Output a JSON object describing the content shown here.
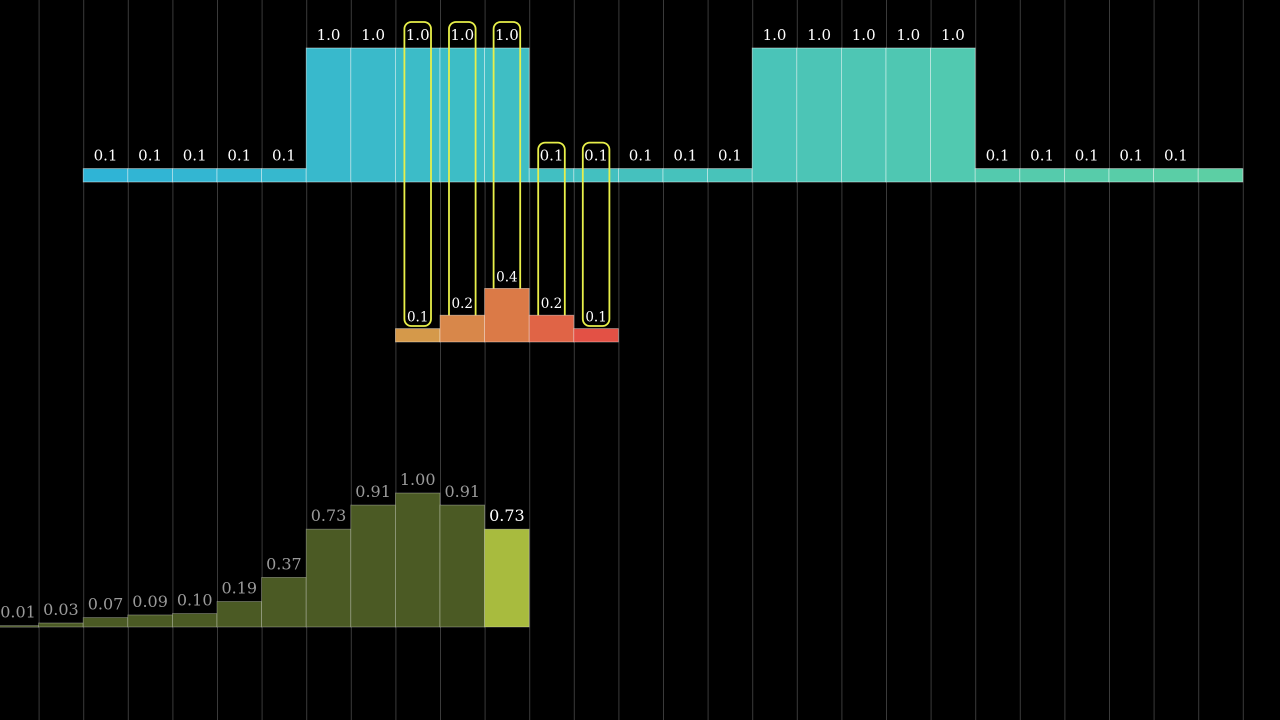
{
  "chart_data": [
    {
      "type": "bar",
      "name": "signal",
      "x": [
        2,
        3,
        4,
        5,
        6,
        7,
        8,
        9,
        10,
        11,
        12,
        13,
        14,
        15,
        16,
        17,
        18,
        19,
        20,
        21,
        22,
        23,
        24,
        25,
        26,
        27
      ],
      "values": [
        0.1,
        0.1,
        0.1,
        0.1,
        0.1,
        1.0,
        1.0,
        1.0,
        1.0,
        1.0,
        0.1,
        0.1,
        0.1,
        0.1,
        0.1,
        1.0,
        1.0,
        1.0,
        1.0,
        1.0,
        0.1,
        0.1,
        0.1,
        0.1,
        0.1,
        0.1
      ],
      "labels": [
        "0.1",
        "0.1",
        "0.1",
        "0.1",
        "0.1",
        "1.0",
        "1.0",
        "1.0",
        "1.0",
        "1.0",
        "0.1",
        "0.1",
        "0.1",
        "0.1",
        "0.1",
        "1.0",
        "1.0",
        "1.0",
        "1.0",
        "1.0",
        "0.1",
        "0.1",
        "0.1",
        "0.1",
        "0.1",
        "0.1"
      ],
      "label_shown": [
        true,
        true,
        true,
        true,
        true,
        true,
        true,
        true,
        true,
        true,
        true,
        true,
        true,
        true,
        true,
        true,
        true,
        true,
        true,
        true,
        true,
        true,
        true,
        true,
        true,
        false
      ],
      "highlighted_x": [
        9,
        10,
        11,
        12,
        13
      ],
      "color_start": "#2fb4d6",
      "color_end": "#5ccfa4",
      "highlight_color": "#e8f04a"
    },
    {
      "type": "bar",
      "name": "kernel",
      "x": [
        9,
        10,
        11,
        12,
        13
      ],
      "values": [
        0.1,
        0.2,
        0.4,
        0.2,
        0.1
      ],
      "labels": [
        "0.1",
        "0.2",
        "0.4",
        "0.2",
        "0.1"
      ],
      "colors": [
        "#d5994a",
        "#d8874a",
        "#db7a47",
        "#e06446",
        "#e35145"
      ]
    },
    {
      "type": "bar",
      "name": "result",
      "x": [
        0,
        1,
        2,
        3,
        4,
        5,
        6,
        7,
        8,
        9,
        10,
        11
      ],
      "values": [
        0.01,
        0.03,
        0.07,
        0.09,
        0.1,
        0.19,
        0.37,
        0.73,
        0.91,
        1.0,
        0.91,
        0.73
      ],
      "labels": [
        "0.01",
        "0.03",
        "0.07",
        "0.09",
        "0.10",
        "0.19",
        "0.37",
        "0.73",
        "0.91",
        "1.00",
        "0.91",
        "0.73"
      ],
      "current_x": 11,
      "bar_color": "#4b5a24",
      "current_color": "#a8bb3e",
      "label_color": "#9a9a9a",
      "current_label_color": "#ffffff"
    }
  ]
}
